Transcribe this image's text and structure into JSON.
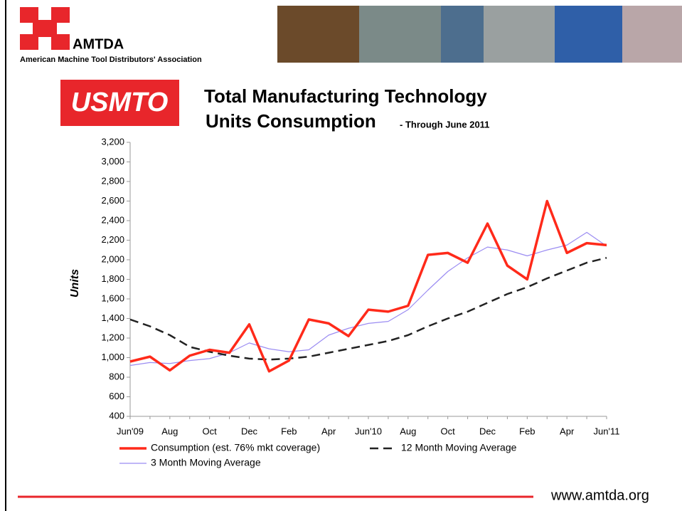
{
  "header": {
    "logo_text": "AMTDA",
    "org_name": "American Machine Tool Distributors' Association",
    "badge": "USMTO"
  },
  "chart_data": {
    "type": "line",
    "title": [
      "Total Manufacturing Technology",
      "Units Consumption"
    ],
    "subtitle": "- Through June 2011",
    "y_label": "Units",
    "categories": [
      "Jun'09",
      null,
      "Aug",
      null,
      "Oct",
      null,
      "Dec",
      null,
      "Feb",
      null,
      "Apr",
      null,
      "Jun'10",
      null,
      "Aug",
      null,
      "Oct",
      null,
      "Dec",
      null,
      "Feb",
      null,
      "Apr",
      null,
      "Jun'11"
    ],
    "series": [
      {
        "name": "Consumption (est. 76% mkt coverage)",
        "color": "#ff2a1a",
        "style": "solid",
        "values": [
          960,
          1010,
          870,
          1020,
          1080,
          1050,
          1340,
          860,
          970,
          1390,
          1350,
          1220,
          1490,
          1470,
          1530,
          2050,
          2070,
          1970,
          2370,
          1940,
          1800,
          2600,
          2070,
          2170,
          2150
        ]
      },
      {
        "name": "12 Month Moving Average",
        "color": "#222222",
        "style": "dashed",
        "values": [
          1390,
          1320,
          1230,
          1110,
          1060,
          1020,
          990,
          980,
          990,
          1010,
          1050,
          1090,
          1130,
          1170,
          1230,
          1320,
          1400,
          1470,
          1560,
          1650,
          1720,
          1810,
          1890,
          1970,
          2020
        ]
      },
      {
        "name": "3 Month Moving Average",
        "color": "#9b8cf2",
        "style": "thin",
        "values": [
          920,
          950,
          940,
          970,
          990,
          1050,
          1150,
          1090,
          1060,
          1080,
          1230,
          1300,
          1350,
          1370,
          1490,
          1690,
          1880,
          2020,
          2130,
          2100,
          2040,
          2100,
          2150,
          2280,
          2140
        ]
      }
    ],
    "ylim": [
      400,
      3200
    ],
    "yticks": [
      400,
      600,
      800,
      {
        "value": 1000,
        "label": "1,000"
      },
      {
        "value": 1200,
        "label": "1,200"
      },
      {
        "value": 1400,
        "label": "1,400"
      },
      {
        "value": 1600,
        "label": "1,600"
      },
      {
        "value": 1800,
        "label": "1,800"
      },
      {
        "value": 2000,
        "label": "2,000"
      },
      {
        "value": 2200,
        "label": "2,200"
      },
      {
        "value": 2400,
        "label": "2,400"
      },
      {
        "value": 2600,
        "label": "2,600"
      },
      {
        "value": 2800,
        "label": "2,800"
      },
      {
        "value": 3000,
        "label": "3,000"
      },
      {
        "value": 3200,
        "label": "3,200"
      }
    ]
  },
  "footer": {
    "url": "www.amtda.org"
  }
}
